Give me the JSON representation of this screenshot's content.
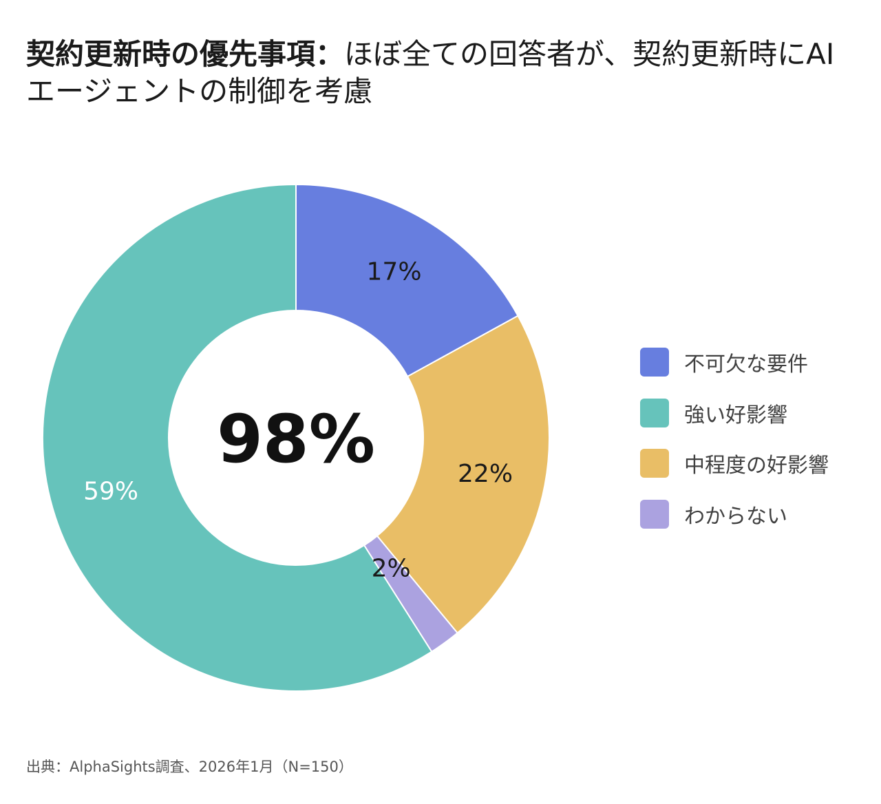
{
  "title": {
    "bold": "契約更新時の優先事項：",
    "rest": "ほぼ全ての回答者が、契約更新時にAIエージェントの制御を考慮"
  },
  "source": "出典：AlphaSights調査、2026年1月（N=150）",
  "chart_data": {
    "type": "pie",
    "variant": "donut",
    "center_label": "98%",
    "start_angle_deg": 0,
    "direction": "clockwise",
    "legend_position": "right",
    "slices": [
      {
        "label": "不可欠な要件",
        "value": 17,
        "value_label": "17%",
        "color": "#677EDF",
        "label_color": "#1a1a1a"
      },
      {
        "label": "中程度の好影響",
        "value": 22,
        "value_label": "22%",
        "color": "#E9BE66",
        "label_color": "#1a1a1a"
      },
      {
        "label": "わからない",
        "value": 2,
        "value_label": "2%",
        "color": "#ABA2E0",
        "label_color": "#1a1a1a"
      },
      {
        "label": "強い好影響",
        "value": 59,
        "value_label": "59%",
        "color": "#66C3BB",
        "label_color": "#ffffff"
      }
    ],
    "legend": [
      {
        "label": "不可欠な要件",
        "color": "#677EDF"
      },
      {
        "label": "強い好影響",
        "color": "#66C3BB"
      },
      {
        "label": "中程度の好影響",
        "color": "#E9BE66"
      },
      {
        "label": "わからない",
        "color": "#ABA2E0"
      }
    ]
  }
}
